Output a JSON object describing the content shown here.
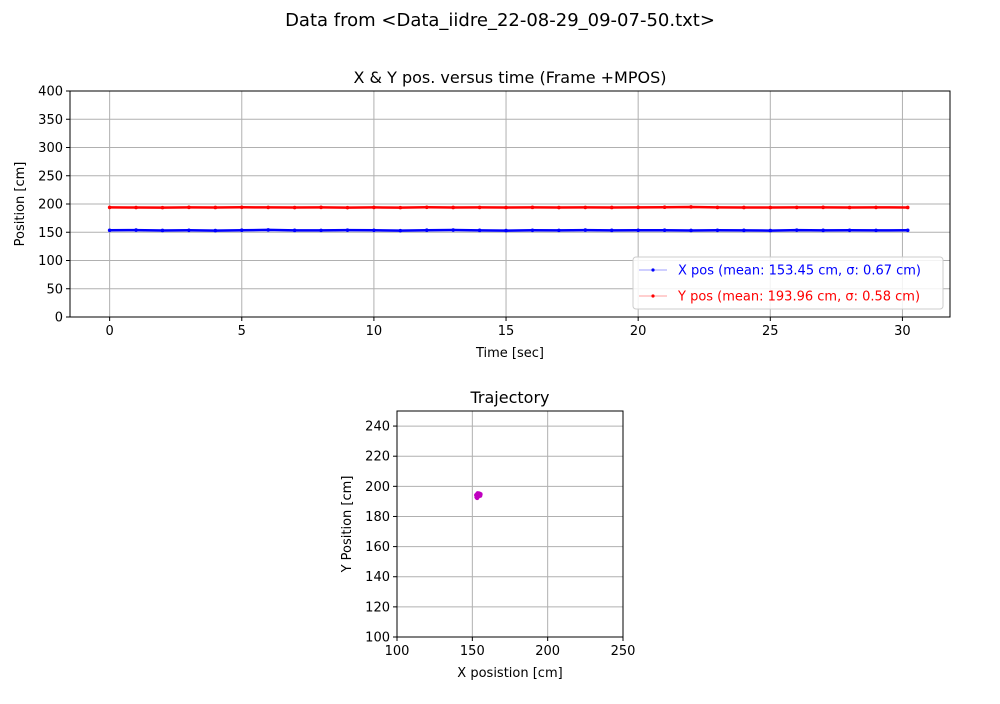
{
  "figure": {
    "suptitle": "Data from <Data_iidre_22-08-29_09-07-50.txt>"
  },
  "chart_data": [
    {
      "type": "line",
      "title": "X & Y pos. versus time (Frame +MPOS)",
      "xlabel": "Time [sec]",
      "ylabel": "Position [cm]",
      "xlim": [
        -1.5,
        31.8
      ],
      "ylim": [
        0,
        400
      ],
      "xticks": [
        0,
        5,
        10,
        15,
        20,
        25,
        30
      ],
      "yticks": [
        0,
        50,
        100,
        150,
        200,
        250,
        300,
        350,
        400
      ],
      "grid": true,
      "legend_position": "lower-right",
      "x": [
        0,
        1,
        2,
        3,
        4,
        5,
        6,
        7,
        8,
        9,
        10,
        11,
        12,
        13,
        14,
        15,
        16,
        17,
        18,
        19,
        20,
        21,
        22,
        23,
        24,
        25,
        26,
        27,
        28,
        29,
        30.2
      ],
      "series": [
        {
          "name": "X pos (mean: 153.45 cm, σ: 0.67 cm)",
          "color": "#0000ff",
          "values": [
            153.5,
            153.8,
            153.2,
            153.5,
            152.9,
            153.6,
            154.1,
            153.4,
            153.3,
            153.7,
            153.5,
            152.8,
            153.6,
            153.9,
            153.4,
            152.9,
            153.5,
            153.3,
            153.8,
            153.4,
            153.5,
            153.6,
            153.2,
            153.5,
            153.4,
            152.9,
            153.7,
            153.4,
            153.5,
            153.3,
            153.5
          ]
        },
        {
          "name": "Y pos (mean: 193.96 cm, σ: 0.58 cm)",
          "color": "#ff0000",
          "values": [
            194.0,
            193.8,
            193.6,
            194.1,
            193.9,
            194.2,
            194.0,
            193.7,
            194.1,
            193.5,
            194.0,
            193.6,
            194.2,
            193.9,
            194.0,
            193.8,
            194.1,
            193.7,
            194.0,
            193.9,
            194.1,
            194.3,
            194.8,
            194.0,
            193.9,
            193.8,
            194.0,
            194.1,
            193.8,
            194.0,
            193.9
          ]
        }
      ]
    },
    {
      "type": "scatter",
      "title": "Trajectory",
      "xlabel": "X posistion [cm]",
      "ylabel": "Y Position [cm]",
      "xlim": [
        100,
        250
      ],
      "ylim": [
        100,
        250
      ],
      "xticks": [
        100,
        150,
        200,
        250
      ],
      "yticks": [
        100,
        120,
        140,
        160,
        180,
        200,
        220,
        240
      ],
      "grid": true,
      "series": [
        {
          "color": "#bf00bf",
          "x": [
            152.6,
            153.0,
            153.4,
            153.8,
            154.2,
            154.6,
            155.0,
            155.4,
            153.2,
            152.9,
            154.0,
            153.6,
            155.2,
            154.4,
            152.8
          ],
          "y": [
            194.2,
            193.0,
            195.0,
            194.0,
            194.6,
            195.2,
            194.4,
            194.8,
            192.3,
            193.6,
            193.4,
            195.4,
            193.8,
            194.9,
            192.8
          ]
        }
      ]
    }
  ]
}
